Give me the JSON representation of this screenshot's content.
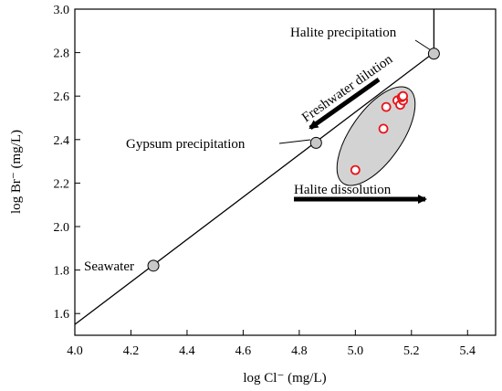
{
  "chart_data": {
    "type": "scatter",
    "xlabel": "log Cl⁻ (mg/L)",
    "ylabel": "log Br⁻ (mg/L)",
    "xlim": [
      4.0,
      5.5
    ],
    "ylim": [
      1.5,
      3.0
    ],
    "xticks": [
      "4.0",
      "4.2",
      "4.4",
      "4.6",
      "4.8",
      "5.0",
      "5.2",
      "5.4"
    ],
    "yticks": [
      "1.6",
      "1.8",
      "2.0",
      "2.2",
      "2.4",
      "2.6",
      "2.8",
      "3.0"
    ],
    "grid": false,
    "evaporation_line": {
      "points": [
        {
          "x": 4.0,
          "y": 1.55
        },
        {
          "x": 5.28,
          "y": 2.8
        },
        {
          "x": 5.28,
          "y": 3.0
        }
      ]
    },
    "stage_markers": [
      {
        "label": "Seawater",
        "x": 4.28,
        "y": 1.82
      },
      {
        "label": "Gypsum precipitation",
        "x": 4.86,
        "y": 2.385
      },
      {
        "label": "Halite precipitation",
        "x": 5.28,
        "y": 2.795
      }
    ],
    "samples": {
      "color": "#e8141b",
      "points": [
        {
          "x": 5.0,
          "y": 2.26
        },
        {
          "x": 5.1,
          "y": 2.45
        },
        {
          "x": 5.11,
          "y": 2.55
        },
        {
          "x": 5.15,
          "y": 2.58
        },
        {
          "x": 5.16,
          "y": 2.56
        },
        {
          "x": 5.17,
          "y": 2.58
        },
        {
          "x": 5.165,
          "y": 2.595
        },
        {
          "x": 5.17,
          "y": 2.6
        }
      ]
    },
    "annotations": {
      "freshwater": "Freshwater dilution",
      "halite_dissolution": "Halite dissolution"
    },
    "marker_fill": "#c8c8c8",
    "ellipse_fill": "#d3d3d3"
  }
}
